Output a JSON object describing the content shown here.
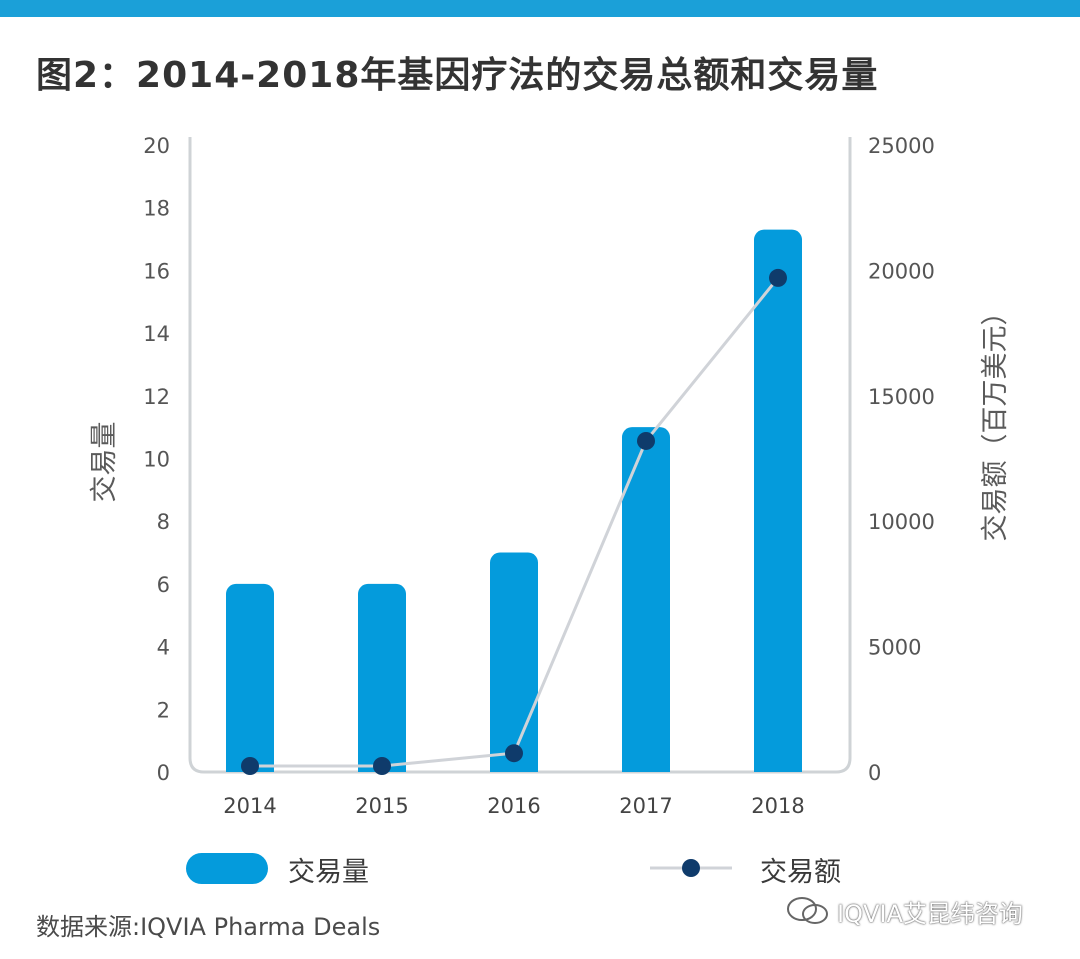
{
  "title": "图2：2014-2018年基因疗法的交易总额和交易量",
  "chart_data": {
    "type": "bar",
    "categories": [
      "2014",
      "2015",
      "2016",
      "2017",
      "2018"
    ],
    "series": [
      {
        "name": "交易量",
        "type": "bar",
        "axis": "left",
        "values": [
          6,
          6,
          7,
          11,
          17.3
        ]
      },
      {
        "name": "交易额",
        "type": "line",
        "axis": "right",
        "values": [
          0,
          0,
          750,
          13200,
          19700
        ]
      }
    ],
    "y_left": {
      "label": "交易量",
      "ylim": [
        0,
        20
      ],
      "ticks": [
        "0",
        "2",
        "4",
        "6",
        "8",
        "10",
        "12",
        "14",
        "16",
        "18",
        "20"
      ]
    },
    "y_right": {
      "label": "交易额（百万美元）",
      "ylim": [
        0,
        25000
      ],
      "ticks": [
        "0",
        "5000",
        "10000",
        "15000",
        "20000",
        "25000"
      ]
    },
    "legend_position": "bottom",
    "grid": false
  },
  "legend": {
    "bar_label": "交易量",
    "line_label": "交易额"
  },
  "source": "数据来源:IQVIA Pharma Deals",
  "watermark": "IQVIA艾昆纬咨询",
  "colors": {
    "bar": "#049bdc",
    "line": "#d0d3d8",
    "marker": "#0f3b6b",
    "axis": "#cfd3d6",
    "top_bar": "#1ba0d8"
  }
}
